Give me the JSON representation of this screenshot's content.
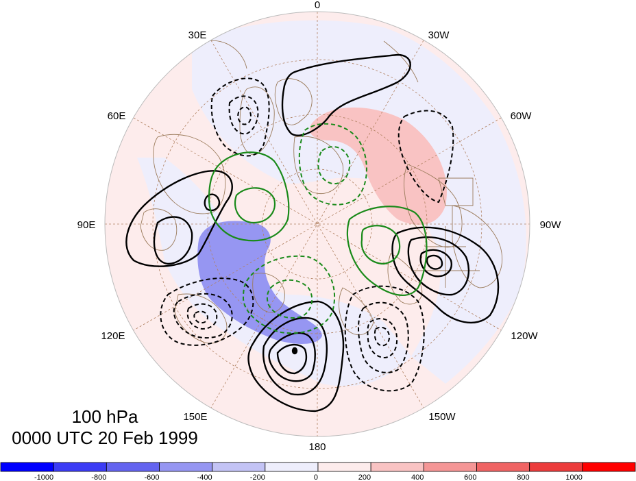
{
  "title": {
    "level": "100 hPa",
    "time": "0000 UTC 20 Feb 1999"
  },
  "longitude_labels": [
    "0",
    "30W",
    "60W",
    "90W",
    "120W",
    "150W",
    "180",
    "150E",
    "120E",
    "90E",
    "60E",
    "30E"
  ],
  "colorbar": {
    "ticks": [
      "-1000",
      "-800",
      "-600",
      "-400",
      "-200",
      "0",
      "200",
      "400",
      "600",
      "800",
      "1000"
    ],
    "colors": [
      "#0000ff",
      "#3c3cf5",
      "#6464f0",
      "#9696f2",
      "#c3c3f5",
      "#eeeefc",
      "#fdecec",
      "#f9c3c3",
      "#f59696",
      "#f06464",
      "#ec3c3c",
      "#ff0000"
    ]
  },
  "legend_colors": {
    "positive_contour": "#000000",
    "negative_contour": "#000000",
    "green_contour": "#1a8a1a",
    "coastline": "#9b7b5b",
    "grid": "#b08060"
  }
}
